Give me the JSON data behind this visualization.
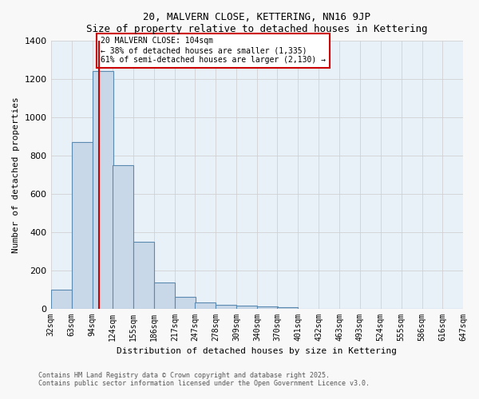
{
  "title": "20, MALVERN CLOSE, KETTERING, NN16 9JP",
  "subtitle": "Size of property relative to detached houses in Kettering",
  "xlabel": "Distribution of detached houses by size in Kettering",
  "ylabel": "Number of detached properties",
  "bar_color": "#c8d8e8",
  "bar_edge_color": "#5a8ab0",
  "background_color": "#e8f0f8",
  "grid_color": "#ffffff",
  "bins": [
    32,
    63,
    94,
    124,
    155,
    186,
    217,
    247,
    278,
    309,
    340,
    370,
    401,
    432,
    463,
    493,
    524,
    555,
    586,
    616,
    647
  ],
  "values": [
    100,
    870,
    1240,
    750,
    350,
    135,
    60,
    30,
    20,
    15,
    10,
    5,
    0,
    0,
    0,
    0,
    0,
    0,
    0,
    0
  ],
  "property_size": 104,
  "property_label": "20 MALVERN CLOSE: 104sqm",
  "annotation_line1": "← 38% of detached houses are smaller (1,335)",
  "annotation_line2": "61% of semi-detached houses are larger (2,130) →",
  "red_line_color": "#cc0000",
  "annotation_box_edge": "#cc0000",
  "annotation_bg": "#ffffff",
  "footnote1": "Contains HM Land Registry data © Crown copyright and database right 2025.",
  "footnote2": "Contains public sector information licensed under the Open Government Licence v3.0.",
  "ylim": [
    0,
    1400
  ],
  "yticks": [
    0,
    200,
    400,
    600,
    800,
    1000,
    1200,
    1400
  ],
  "tick_labels": [
    "32sqm",
    "63sqm",
    "94sqm",
    "124sqm",
    "155sqm",
    "186sqm",
    "217sqm",
    "247sqm",
    "278sqm",
    "309sqm",
    "340sqm",
    "370sqm",
    "401sqm",
    "432sqm",
    "463sqm",
    "493sqm",
    "524sqm",
    "555sqm",
    "586sqm",
    "616sqm",
    "647sqm"
  ]
}
